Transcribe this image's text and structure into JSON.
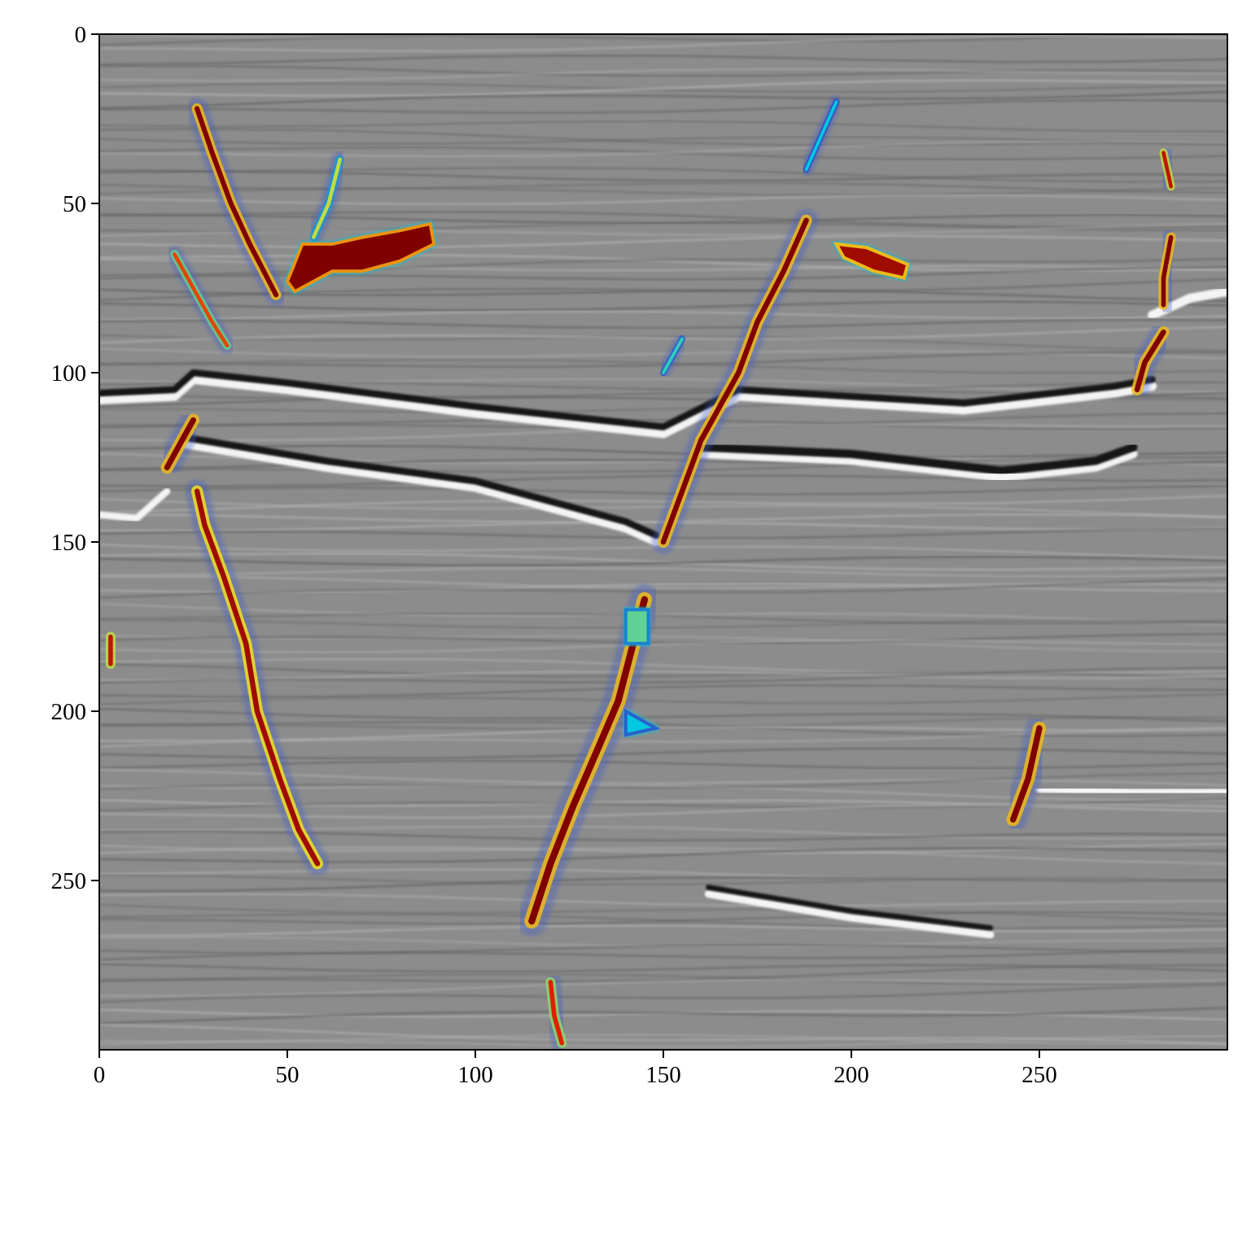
{
  "chart_data": {
    "type": "heatmap",
    "title": "",
    "xlabel": "",
    "ylabel": "",
    "xlim": [
      0,
      300
    ],
    "ylim": [
      300,
      0
    ],
    "x_ticks": [
      0,
      50,
      100,
      150,
      200,
      250
    ],
    "y_ticks": [
      0,
      50,
      100,
      150,
      200,
      250
    ],
    "x_tick_labels": [
      "0",
      "50",
      "100",
      "150",
      "200",
      "250"
    ],
    "y_tick_labels": [
      "0",
      "50",
      "100",
      "150",
      "200",
      "250"
    ],
    "grid": false,
    "legend": "none",
    "background": {
      "description": "grayscale seismic amplitude section",
      "colormap": "gray",
      "horizons": [
        {
          "pts": [
            [
              0,
              108
            ],
            [
              20,
              107
            ],
            [
              25,
              102
            ],
            [
              50,
              105
            ],
            [
              100,
              112
            ],
            [
              150,
              118
            ],
            [
              170,
              107
            ],
            [
              230,
              111
            ],
            [
              270,
              106
            ],
            [
              280,
              104
            ]
          ],
          "polarity": "white",
          "width": 2.4
        },
        {
          "pts": [
            [
              0,
              106
            ],
            [
              20,
              105
            ],
            [
              25,
              100
            ],
            [
              50,
              103
            ],
            [
              100,
              110
            ],
            [
              150,
              116
            ],
            [
              170,
              105
            ],
            [
              230,
              109
            ],
            [
              270,
              104
            ],
            [
              280,
              102
            ]
          ],
          "polarity": "black",
          "width": 1.8
        },
        {
          "pts": [
            [
              22,
              121
            ],
            [
              60,
              128
            ],
            [
              100,
              134
            ],
            [
              140,
              146
            ],
            [
              148,
              150
            ]
          ],
          "polarity": "white",
          "width": 2.2
        },
        {
          "pts": [
            [
              22,
              119
            ],
            [
              60,
              126
            ],
            [
              100,
              132
            ],
            [
              140,
              144
            ],
            [
              148,
              148
            ]
          ],
          "polarity": "black",
          "width": 1.8
        },
        {
          "pts": [
            [
              160,
              124
            ],
            [
              200,
              126
            ],
            [
              240,
              131
            ],
            [
              265,
              128
            ],
            [
              275,
              124
            ]
          ],
          "polarity": "white",
          "width": 2.2
        },
        {
          "pts": [
            [
              160,
              122
            ],
            [
              200,
              124
            ],
            [
              240,
              129
            ],
            [
              265,
              126
            ],
            [
              275,
              122
            ]
          ],
          "polarity": "black",
          "width": 2.2
        },
        {
          "pts": [
            [
              0,
              142
            ],
            [
              10,
              143
            ],
            [
              18,
              135
            ]
          ],
          "polarity": "white",
          "width": 1.8
        },
        {
          "pts": [
            [
              280,
              83
            ],
            [
              290,
              78
            ],
            [
              300,
              76
            ]
          ],
          "polarity": "white",
          "width": 2.4
        },
        {
          "pts": [
            [
              250,
              223
            ],
            [
              275,
              224
            ],
            [
              300,
              224
            ]
          ],
          "polarity": "white",
          "width": 2.0
        },
        {
          "pts": [
            [
              162,
              254
            ],
            [
              200,
              261
            ],
            [
              237,
              266
            ]
          ],
          "polarity": "white",
          "width": 2.0
        },
        {
          "pts": [
            [
              162,
              252
            ],
            [
              200,
              259
            ],
            [
              237,
              264
            ]
          ],
          "polarity": "black",
          "width": 1.4
        }
      ]
    },
    "overlay": {
      "description": "fault probability overlay",
      "colormap": "jet",
      "faults": [
        {
          "pts": [
            [
              26,
              22
            ],
            [
              30,
              35
            ],
            [
              35,
              50
            ],
            [
              40,
              62
            ],
            [
              47,
              77
            ]
          ],
          "value": 1.0,
          "width": 1.3
        },
        {
          "pts": [
            [
              26,
              135
            ],
            [
              28,
              145
            ],
            [
              33,
              160
            ],
            [
              39,
              180
            ],
            [
              42,
              200
            ],
            [
              48,
              220
            ],
            [
              53,
              235
            ],
            [
              58,
              245
            ]
          ],
          "value": 0.95,
          "width": 1.4
        },
        {
          "pts": [
            [
              18,
              128
            ],
            [
              22,
              120
            ],
            [
              25,
              114
            ]
          ],
          "value": 1.0,
          "width": 1.5
        },
        {
          "pts": [
            [
              20,
              65
            ],
            [
              25,
              75
            ],
            [
              30,
              85
            ],
            [
              34,
              92
            ]
          ],
          "value": 0.8,
          "width": 1.0
        },
        {
          "pts": [
            [
              188,
              55
            ],
            [
              182,
              70
            ],
            [
              175,
              85
            ],
            [
              170,
              100
            ],
            [
              160,
              120
            ],
            [
              155,
              135
            ],
            [
              150,
              150
            ]
          ],
          "value": 1.0,
          "width": 1.4
        },
        {
          "pts": [
            [
              145,
              167
            ],
            [
              142,
              180
            ],
            [
              138,
              197
            ],
            [
              133,
              210
            ],
            [
              126,
              228
            ],
            [
              120,
              245
            ],
            [
              115,
              262
            ]
          ],
          "value": 1.0,
          "width": 1.8
        },
        {
          "pts": [
            [
              250,
              205
            ],
            [
              247,
              220
            ],
            [
              243,
              232
            ]
          ],
          "value": 1.0,
          "width": 1.6
        },
        {
          "pts": [
            [
              285,
              60
            ],
            [
              283,
              72
            ],
            [
              283,
              80
            ]
          ],
          "value": 1.0,
          "width": 1.2
        },
        {
          "pts": [
            [
              283,
              88
            ],
            [
              278,
              97
            ],
            [
              276,
              105
            ]
          ],
          "value": 1.0,
          "width": 1.4
        },
        {
          "pts": [
            [
              283,
              35
            ],
            [
              285,
              45
            ]
          ],
          "value": 0.9,
          "width": 1.0
        },
        {
          "pts": [
            [
              120,
              280
            ],
            [
              121,
              290
            ],
            [
              123,
              298
            ]
          ],
          "value": 0.85,
          "width": 1.2
        },
        {
          "pts": [
            [
              64,
              37
            ],
            [
              61,
              50
            ],
            [
              57,
              60
            ]
          ],
          "value": 0.55,
          "width": 1.0
        },
        {
          "pts": [
            [
              3,
              178
            ],
            [
              3,
              186
            ]
          ],
          "value": 0.9,
          "width": 1.2
        },
        {
          "pts": [
            [
              188,
              40
            ],
            [
              196,
              20
            ]
          ],
          "value": 0.35,
          "width": 0.8
        },
        {
          "pts": [
            [
              150,
              100
            ],
            [
              155,
              90
            ]
          ],
          "value": 0.4,
          "width": 0.8
        }
      ],
      "blobs": [
        {
          "pts": [
            [
              50,
              73
            ],
            [
              54,
              62
            ],
            [
              62,
              62
            ],
            [
              70,
              60
            ],
            [
              80,
              58
            ],
            [
              88,
              56
            ],
            [
              89,
              62
            ],
            [
              80,
              67
            ],
            [
              70,
              70
            ],
            [
              62,
              70
            ],
            [
              52,
              76
            ]
          ],
          "value": 1.0
        },
        {
          "pts": [
            [
              196,
              62
            ],
            [
              204,
              63
            ],
            [
              215,
              68
            ],
            [
              214,
              72
            ],
            [
              206,
              70
            ],
            [
              198,
              66
            ]
          ],
          "value": 0.95
        },
        {
          "pts": [
            [
              140,
              170
            ],
            [
              146,
              170
            ],
            [
              146,
              180
            ],
            [
              140,
              180
            ]
          ],
          "value": 0.45
        },
        {
          "pts": [
            [
              140,
              200
            ],
            [
              148,
              205
            ],
            [
              140,
              207
            ]
          ],
          "value": 0.35
        }
      ]
    }
  }
}
